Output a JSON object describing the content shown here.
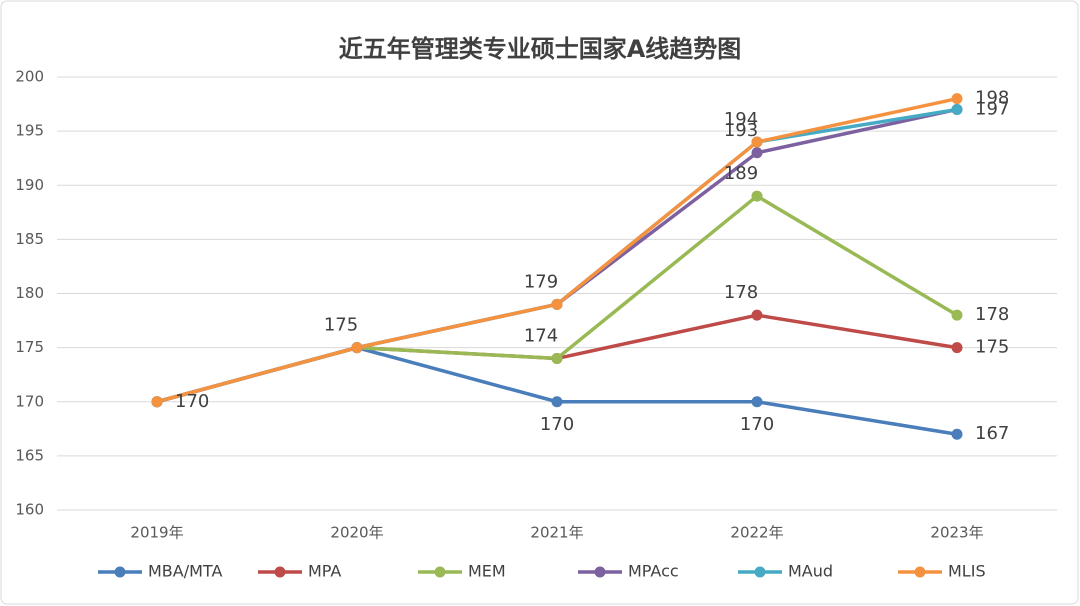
{
  "chart_data": {
    "type": "line",
    "title": "近五年管理类专业硕士国家A线趋势图",
    "categories": [
      "2019年",
      "2020年",
      "2021年",
      "2022年",
      "2023年"
    ],
    "series": [
      {
        "name": "MBA/MTA",
        "color": "#4a7ebb",
        "values": [
          170,
          175,
          170,
          170,
          167
        ]
      },
      {
        "name": "MPA",
        "color": "#be4b48",
        "values": [
          170,
          175,
          174,
          178,
          175
        ]
      },
      {
        "name": "MEM",
        "color": "#98b954",
        "values": [
          170,
          175,
          174,
          189,
          178
        ]
      },
      {
        "name": "MPAcc",
        "color": "#7d60a0",
        "values": [
          170,
          175,
          179,
          193,
          197
        ]
      },
      {
        "name": "MAud",
        "color": "#46aac5",
        "values": [
          170,
          175,
          179,
          194,
          197
        ]
      },
      {
        "name": "MLIS",
        "color": "#f59240",
        "values": [
          170,
          175,
          179,
          194,
          198
        ]
      }
    ],
    "ylim": [
      160,
      200
    ],
    "yticks": [
      160,
      165,
      170,
      175,
      180,
      185,
      190,
      195,
      200
    ],
    "grid": true,
    "legend": "bottom"
  }
}
